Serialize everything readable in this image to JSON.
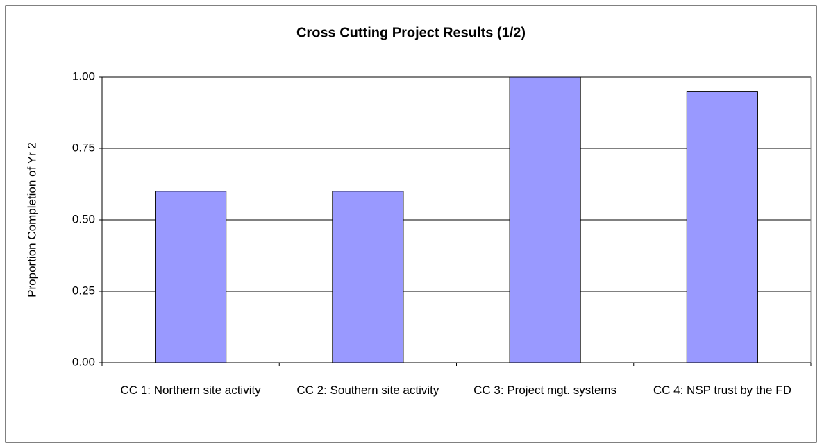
{
  "chart_data": {
    "type": "bar",
    "title": "Cross Cutting Project Results (1/2)",
    "y_label": "Proportion Completion of Yr 2",
    "categories": [
      "CC 1: Northern site activity",
      "CC 2: Southern site activity",
      "CC 3: Project mgt. systems",
      "CC 4: NSP trust by the FD"
    ],
    "values": [
      0.6,
      0.6,
      1.0,
      0.95
    ],
    "color": "#9999ff",
    "ylim": [
      0,
      1
    ],
    "yticks": [
      {
        "value": 0,
        "label": "0.00"
      },
      {
        "value": 0.25,
        "label": "0.25"
      },
      {
        "value": 0.5,
        "label": "0.50"
      },
      {
        "value": 0.75,
        "label": "0.75"
      },
      {
        "value": 1,
        "label": "1.00"
      }
    ],
    "grid": true
  }
}
